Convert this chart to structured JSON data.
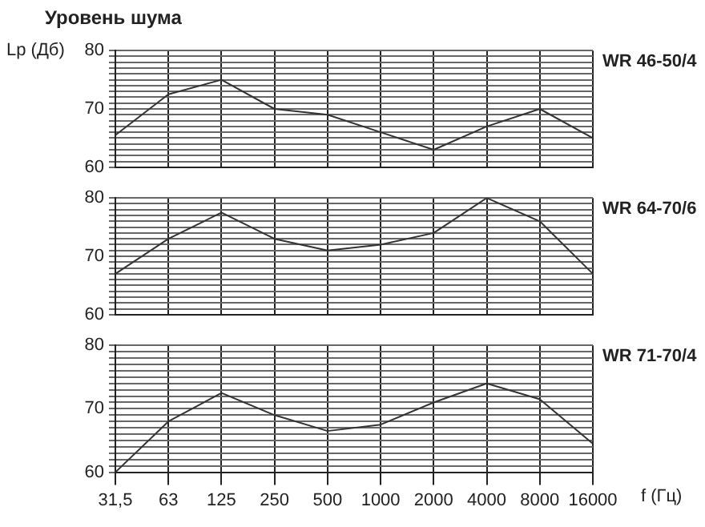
{
  "chart_data": [
    {
      "type": "line",
      "title": "Уровень шума",
      "ylabel": "Lp (Дб)",
      "categories": [
        "31,5",
        "63",
        "125",
        "250",
        "500",
        "1000",
        "2000",
        "4000",
        "8000",
        "16000"
      ],
      "series": [
        {
          "name": "WR 46-50/4",
          "color": "#333333",
          "values": [
            65.5,
            72.5,
            75,
            70,
            69,
            66,
            63,
            67,
            70,
            65
          ]
        }
      ],
      "ylim": [
        60,
        80
      ],
      "yticks": [
        60,
        {
          "value": 61,
          "label": null
        },
        {
          "value": 62,
          "label": null
        },
        {
          "value": 63,
          "label": null
        },
        {
          "value": 64,
          "label": null
        },
        {
          "value": 65,
          "label": null
        },
        {
          "value": 66,
          "label": null
        },
        {
          "value": 67,
          "label": null
        },
        {
          "value": 68,
          "label": null
        },
        {
          "value": 69,
          "label": null
        },
        70,
        {
          "value": 71,
          "label": null
        },
        {
          "value": 72,
          "label": null
        },
        {
          "value": 73,
          "label": null
        },
        {
          "value": 74,
          "label": null
        },
        {
          "value": 75,
          "label": null
        },
        {
          "value": 76,
          "label": null
        },
        {
          "value": 77,
          "label": null
        },
        {
          "value": 78,
          "label": null
        },
        {
          "value": 79,
          "label": null
        },
        80
      ],
      "grid": true,
      "legend": false,
      "marker": "none",
      "tick_labels": "y"
    },
    {
      "type": "line",
      "categories": [
        "31,5",
        "63",
        "125",
        "250",
        "500",
        "1000",
        "2000",
        "4000",
        "8000",
        "16000"
      ],
      "series": [
        {
          "name": "WR 64-70/6",
          "color": "#333333",
          "values": [
            67,
            73,
            77.5,
            73,
            71,
            72,
            74,
            80,
            76,
            67
          ]
        }
      ],
      "ylim": [
        60,
        80
      ],
      "yticks": [
        60,
        {
          "value": 61,
          "label": null
        },
        {
          "value": 62,
          "label": null
        },
        {
          "value": 63,
          "label": null
        },
        {
          "value": 64,
          "label": null
        },
        {
          "value": 65,
          "label": null
        },
        {
          "value": 66,
          "label": null
        },
        {
          "value": 67,
          "label": null
        },
        {
          "value": 68,
          "label": null
        },
        {
          "value": 69,
          "label": null
        },
        70,
        {
          "value": 71,
          "label": null
        },
        {
          "value": 72,
          "label": null
        },
        {
          "value": 73,
          "label": null
        },
        {
          "value": 74,
          "label": null
        },
        {
          "value": 75,
          "label": null
        },
        {
          "value": 76,
          "label": null
        },
        {
          "value": 77,
          "label": null
        },
        {
          "value": 78,
          "label": null
        },
        {
          "value": 79,
          "label": null
        },
        80
      ],
      "grid": true,
      "legend": false,
      "marker": "none",
      "tick_labels": "y"
    },
    {
      "type": "line",
      "xlabel": "f (Гц)",
      "categories": [
        "31,5",
        "63",
        "125",
        "250",
        "500",
        "1000",
        "2000",
        "4000",
        "8000",
        "16000"
      ],
      "series": [
        {
          "name": "WR 71-70/4",
          "color": "#333333",
          "values": [
            60,
            68,
            72.5,
            69,
            66.5,
            67.5,
            71,
            74,
            71.5,
            64.5
          ]
        }
      ],
      "ylim": [
        60,
        80
      ],
      "yticks": [
        60,
        {
          "value": 61,
          "label": null
        },
        {
          "value": 62,
          "label": null
        },
        {
          "value": 63,
          "label": null
        },
        {
          "value": 64,
          "label": null
        },
        {
          "value": 65,
          "label": null
        },
        {
          "value": 66,
          "label": null
        },
        {
          "value": 67,
          "label": null
        },
        {
          "value": 68,
          "label": null
        },
        {
          "value": 69,
          "label": null
        },
        70,
        {
          "value": 71,
          "label": null
        },
        {
          "value": 72,
          "label": null
        },
        {
          "value": 73,
          "label": null
        },
        {
          "value": 74,
          "label": null
        },
        {
          "value": 75,
          "label": null
        },
        {
          "value": 76,
          "label": null
        },
        {
          "value": 77,
          "label": null
        },
        {
          "value": 78,
          "label": null
        },
        {
          "value": 79,
          "label": null
        },
        80
      ],
      "grid": true,
      "legend": false,
      "marker": "none"
    }
  ]
}
